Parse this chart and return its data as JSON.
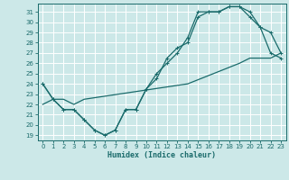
{
  "xlabel": "Humidex (Indice chaleur)",
  "bg_color": "#cce8e8",
  "grid_color": "#ffffff",
  "line_color": "#1a6b6b",
  "xlim": [
    -0.5,
    23.5
  ],
  "ylim": [
    18.5,
    31.8
  ],
  "xticks": [
    0,
    1,
    2,
    3,
    4,
    5,
    6,
    7,
    8,
    9,
    10,
    11,
    12,
    13,
    14,
    15,
    16,
    17,
    18,
    19,
    20,
    21,
    22,
    23
  ],
  "yticks": [
    19,
    20,
    21,
    22,
    23,
    24,
    25,
    26,
    27,
    28,
    29,
    30,
    31
  ],
  "line1_x": [
    0,
    1,
    2,
    3,
    4,
    5,
    6,
    7,
    8,
    9,
    10,
    11,
    12,
    13,
    14,
    15,
    16,
    17,
    18,
    19,
    20,
    21,
    22,
    23
  ],
  "line1_y": [
    24,
    22.5,
    21.5,
    21.5,
    20.5,
    19.5,
    19.0,
    19.5,
    21.5,
    21.5,
    23.5,
    24.5,
    26.5,
    27.5,
    28.0,
    30.5,
    31.0,
    31.0,
    31.5,
    31.5,
    30.5,
    29.5,
    27.0,
    26.5
  ],
  "line2_x": [
    0,
    1,
    2,
    3,
    4,
    5,
    6,
    7,
    8,
    9,
    10,
    11,
    12,
    13,
    14,
    15,
    16,
    17,
    18,
    19,
    20,
    21,
    22,
    23
  ],
  "line2_y": [
    24,
    22.5,
    21.5,
    21.5,
    20.5,
    19.5,
    19.0,
    19.5,
    21.5,
    21.5,
    23.5,
    25.0,
    26.0,
    27.0,
    28.5,
    31.0,
    31.0,
    31.0,
    31.5,
    31.5,
    31.0,
    29.5,
    29.0,
    27.0
  ],
  "line3_x": [
    0,
    1,
    2,
    3,
    4,
    14,
    19,
    20,
    21,
    22,
    23
  ],
  "line3_y": [
    22.0,
    22.5,
    22.5,
    22.0,
    22.5,
    24.0,
    26.0,
    26.5,
    26.5,
    26.5,
    27.0
  ]
}
